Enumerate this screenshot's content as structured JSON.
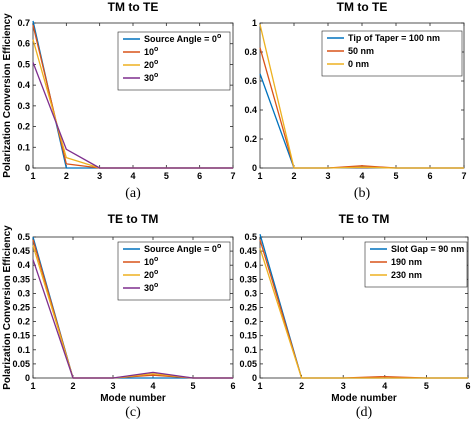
{
  "figure": {
    "ylabel": "Polarization Conversion Efficiency",
    "series_colors": [
      "#0072BD",
      "#D95319",
      "#EDB120",
      "#7E2F8E"
    ]
  },
  "chart_data": [
    {
      "id": "a",
      "type": "line",
      "title": "TM to TE",
      "caption": "(a)",
      "xlabel": "",
      "ylabel": "Polarization Conversion Efficiency",
      "xlim": [
        1,
        7
      ],
      "ylim": [
        0,
        0.7
      ],
      "xticks": [
        1,
        2,
        3,
        4,
        5,
        6,
        7
      ],
      "yticks": [
        0,
        0.1,
        0.2,
        0.3,
        0.4,
        0.5,
        0.6,
        0.7
      ],
      "x": [
        1,
        2,
        3,
        4,
        5,
        6,
        7
      ],
      "legend_position": "top-right",
      "series": [
        {
          "name_main": "Source Angle = 0",
          "name_sup": "o",
          "values": [
            0.71,
            0.0,
            0.0,
            0.0,
            0.0,
            0.0,
            0.0
          ]
        },
        {
          "name_main": "10",
          "name_sup": "o",
          "values": [
            0.69,
            0.02,
            0.0,
            0.0,
            0.0,
            0.0,
            0.0
          ]
        },
        {
          "name_main": "20",
          "name_sup": "o",
          "values": [
            0.62,
            0.05,
            0.0,
            0.0,
            0.0,
            0.0,
            0.0
          ]
        },
        {
          "name_main": "30",
          "name_sup": "o",
          "values": [
            0.51,
            0.09,
            0.0,
            0.0,
            0.0,
            0.0,
            0.0
          ]
        }
      ]
    },
    {
      "id": "b",
      "type": "line",
      "title": "TM to TE",
      "caption": "(b)",
      "xlabel": "",
      "ylabel": "",
      "xlim": [
        1,
        7
      ],
      "ylim": [
        0,
        1
      ],
      "xticks": [
        1,
        2,
        3,
        4,
        5,
        6,
        7
      ],
      "yticks": [
        0,
        0.2,
        0.4,
        0.6,
        0.8,
        1
      ],
      "x": [
        1,
        2,
        3,
        4,
        5,
        6,
        7
      ],
      "legend_position": "top-right",
      "series": [
        {
          "name_main": "Tip of Taper = 100 nm",
          "name_sup": "",
          "values": [
            0.65,
            0.0,
            0.0,
            0.005,
            0.0,
            0.0,
            0.0
          ]
        },
        {
          "name_main": "50 nm",
          "name_sup": "",
          "values": [
            0.83,
            0.0,
            0.0,
            0.015,
            0.0,
            0.0,
            0.0
          ]
        },
        {
          "name_main": "0 nm",
          "name_sup": "",
          "values": [
            0.99,
            0.0,
            0.0,
            0.005,
            0.0,
            0.0,
            0.0
          ]
        }
      ]
    },
    {
      "id": "c",
      "type": "line",
      "title": "TE to TM",
      "caption": "(c)",
      "xlabel": "Mode number",
      "ylabel": "Polarization Conversion Efficiency",
      "xlim": [
        1,
        6
      ],
      "ylim": [
        0,
        0.5
      ],
      "xticks": [
        1,
        2,
        3,
        4,
        5,
        6
      ],
      "yticks": [
        0,
        0.05,
        0.1,
        0.15,
        0.2,
        0.25,
        0.3,
        0.35,
        0.4,
        0.45,
        0.5
      ],
      "x": [
        1,
        2,
        3,
        4,
        5,
        6
      ],
      "legend_position": "top-right",
      "series": [
        {
          "name_main": "Source Angle = 0",
          "name_sup": "o",
          "values": [
            0.5,
            0.0,
            0.0,
            0.0,
            0.0,
            0.0
          ]
        },
        {
          "name_main": "10",
          "name_sup": "o",
          "values": [
            0.49,
            0.0,
            0.0,
            0.01,
            0.0,
            0.0
          ]
        },
        {
          "name_main": "20",
          "name_sup": "o",
          "values": [
            0.47,
            0.0,
            0.0,
            0.015,
            0.0,
            0.0
          ]
        },
        {
          "name_main": "30",
          "name_sup": "o",
          "values": [
            0.42,
            0.0,
            0.0,
            0.02,
            0.0,
            0.0
          ]
        }
      ]
    },
    {
      "id": "d",
      "type": "line",
      "title": "TE to TM",
      "caption": "(d)",
      "xlabel": "Mode number",
      "ylabel": "",
      "xlim": [
        1,
        6
      ],
      "ylim": [
        0,
        0.5
      ],
      "xticks": [
        1,
        2,
        3,
        4,
        5,
        6
      ],
      "yticks": [
        0,
        0.05,
        0.1,
        0.15,
        0.2,
        0.25,
        0.3,
        0.35,
        0.4,
        0.45,
        0.5
      ],
      "x": [
        1,
        2,
        3,
        4,
        5,
        6
      ],
      "legend_position": "top-right",
      "series": [
        {
          "name_main": "Slot Gap = 90 nm",
          "name_sup": "",
          "values": [
            0.51,
            0.0,
            0.0,
            0.0,
            0.0,
            0.0
          ]
        },
        {
          "name_main": "190 nm",
          "name_sup": "",
          "values": [
            0.49,
            0.0,
            0.0,
            0.005,
            0.0,
            0.0
          ]
        },
        {
          "name_main": "230 nm",
          "name_sup": "",
          "values": [
            0.46,
            0.0,
            0.0,
            0.0,
            0.0,
            0.0
          ]
        }
      ]
    }
  ]
}
